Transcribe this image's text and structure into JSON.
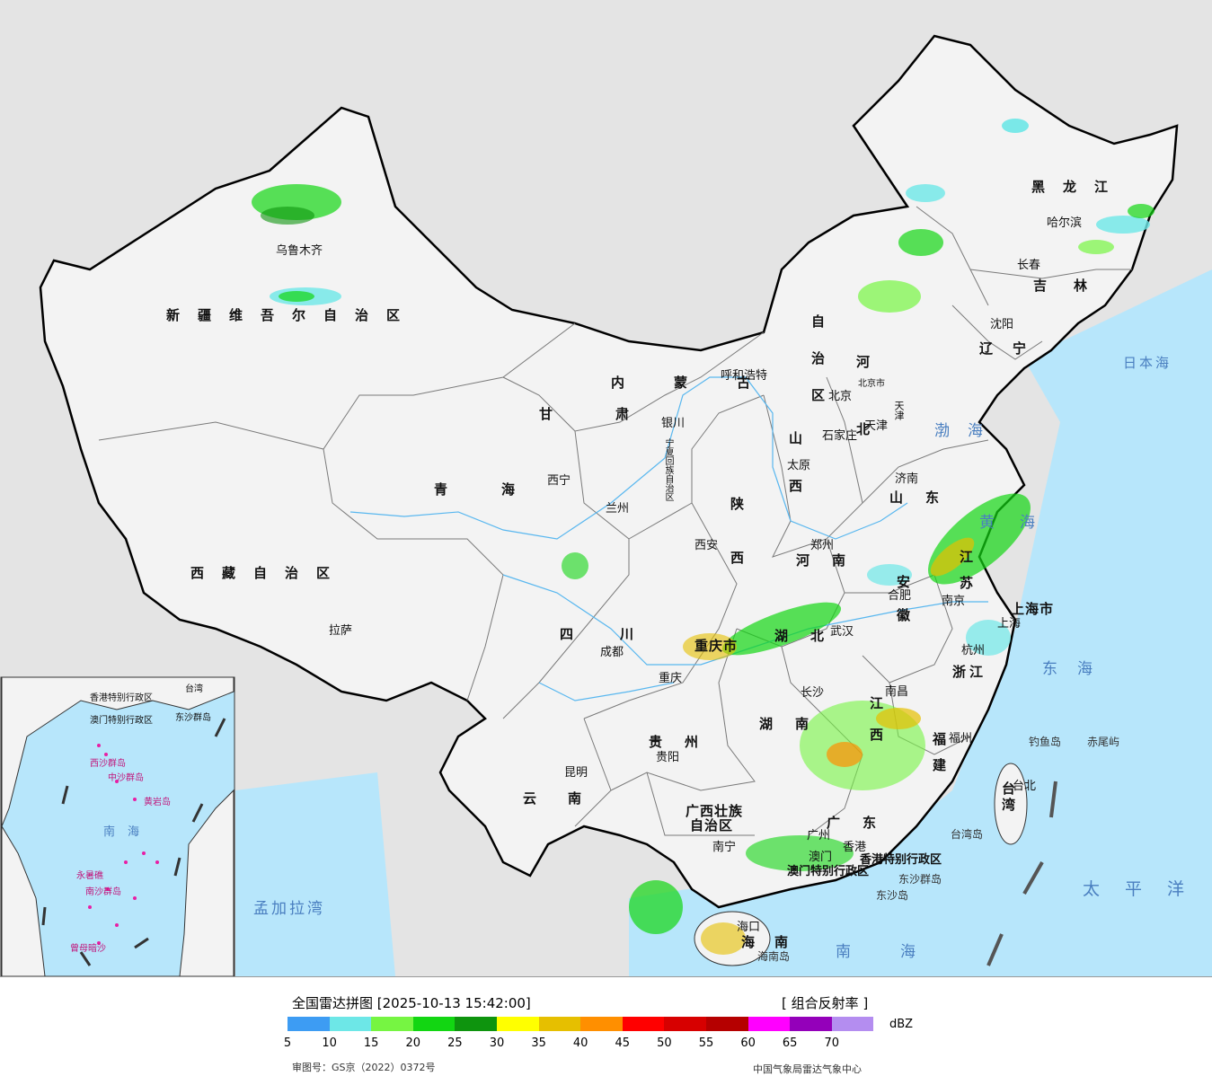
{
  "legend": {
    "title": "全国雷达拼图 [2025-10-13 15:42:00]",
    "product": "[ 组合反射率 ]",
    "unit": "dBZ",
    "approval": "审图号：GS京（2022）0372号",
    "agency": "中国气象局雷达气象中心",
    "colors": [
      "#3d9cf3",
      "#6de7e7",
      "#76f542",
      "#12d612",
      "#0e940e",
      "#ffff00",
      "#e6bf00",
      "#ff8f00",
      "#ff0000",
      "#d70000",
      "#b50000",
      "#ff00ff",
      "#9400ba",
      "#b48df0"
    ],
    "ticks": [
      "5",
      "10",
      "15",
      "20",
      "25",
      "30",
      "35",
      "40",
      "45",
      "50",
      "55",
      "60",
      "65",
      "70"
    ]
  },
  "map": {
    "colors": {
      "land": "#f3f3f3",
      "sea": "#b7e6fb",
      "outside": "#e4e4e4",
      "border": "#000000",
      "province_line": "#7a7a7a",
      "river": "#59b7ef"
    },
    "provinces": {
      "xinjiang": "新疆维吾尔自治区",
      "xizang": "西藏自治区",
      "qinghai": "青海",
      "gansu": "甘肃",
      "neimenggu_1": "内蒙古",
      "neimenggu_2": "自治区",
      "heilongjiang": "黑龙江",
      "jilin": "吉林",
      "liaoning": "辽宁",
      "hebei": "河北",
      "shanxi": "山西",
      "shandong": "山东",
      "henan": "河南",
      "shaanxi": "陕西",
      "sichuan": "四川",
      "hubei": "湖北",
      "hunan": "湖南",
      "jiangxi": "江西",
      "anhui": "安徽",
      "jiangsu": "江苏",
      "zhejiang": "浙江",
      "fujian": "福建",
      "guangdong": "广东",
      "guangxi_1": "广西壮族",
      "guangxi_2": "自治区",
      "guizhou": "贵州",
      "yunnan": "云南",
      "hainan": "海南",
      "taiwan": "台湾",
      "chongqing": "重庆市",
      "shanghai": "上海市",
      "tianjin": "天津",
      "beijing_city": "北京市",
      "ningxia": "宁夏回族自治区",
      "hk": "香港特别行政区",
      "macao": "澳门特别行政区"
    },
    "cities": {
      "urumqi": "乌鲁木齐",
      "lhasa": "拉萨",
      "xining": "西宁",
      "lanzhou": "兰州",
      "yinchuan": "银川",
      "hohhot": "呼和浩特",
      "beijing": "北京",
      "tianjin": "天津",
      "shijiazhuang": "石家庄",
      "taiyuan": "太原",
      "jinan": "济南",
      "zhengzhou": "郑州",
      "xian": "西安",
      "chengdu": "成都",
      "chongqing": "重庆",
      "wuhan": "武汉",
      "changsha": "长沙",
      "nanchang": "南昌",
      "hefei": "合肥",
      "nanjing": "南京",
      "shanghai": "上海",
      "hangzhou": "杭州",
      "fuzhou": "福州",
      "guangzhou": "广州",
      "hongkong": "香港",
      "macau": "澳门",
      "nanning": "南宁",
      "guiyang": "贵阳",
      "kunming": "昆明",
      "haikou": "海口",
      "taipei": "台北",
      "harbin": "哈尔滨",
      "changchun": "长春",
      "shenyang": "沈阳"
    },
    "seas": {
      "japan_sea": "日本海",
      "bohai": "渤海",
      "yellow_sea": "黄海",
      "east_sea": "东海",
      "pacific": "太平洋",
      "south_sea": "南海",
      "bengal": "孟加拉湾"
    },
    "islands": {
      "diaoyu": "钓鱼岛",
      "chiwei": "赤尾屿",
      "taiwan_island": "台湾岛",
      "dongsha_islands": "东沙群岛",
      "dongsha": "东沙岛",
      "hainan_island": "海南岛"
    },
    "inset": {
      "south_sea": "南海",
      "dongsha": "东沙群岛",
      "xisha": "西沙群岛",
      "zhongsha": "中沙群岛",
      "huangyan": "黄岩岛",
      "nansha": "南沙群岛",
      "yongshu": "永暑礁",
      "zengmu": "曾母暗沙",
      "hk": "香港特别行政区",
      "macao": "澳门特别行政区",
      "taiwan": "台湾"
    }
  }
}
